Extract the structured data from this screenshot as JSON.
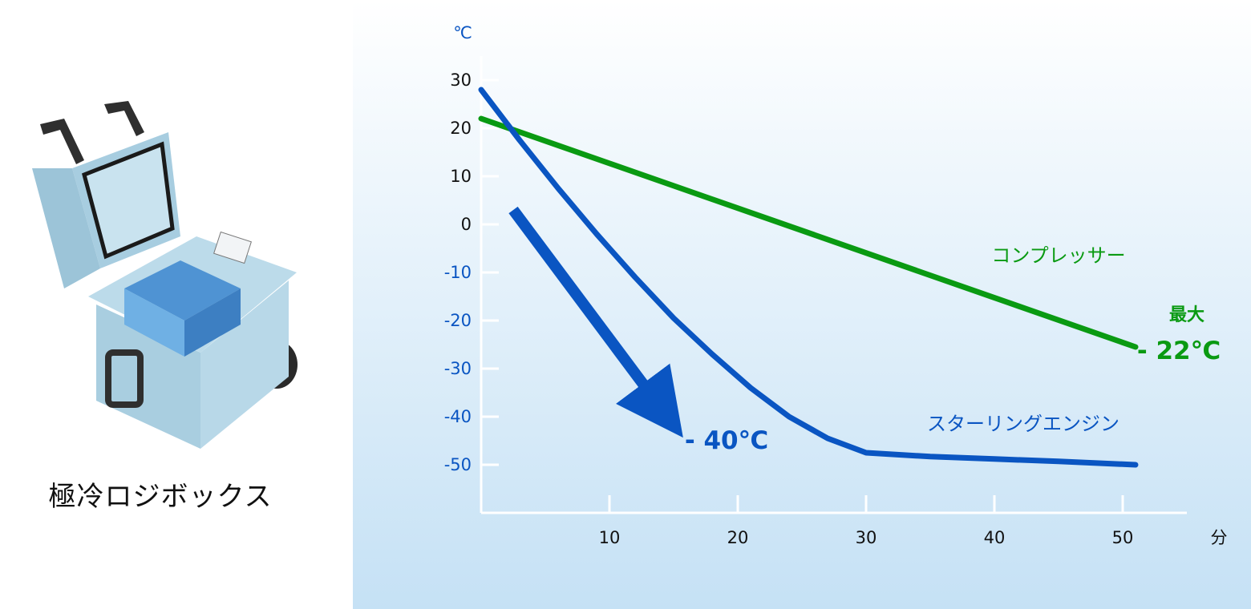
{
  "product": {
    "name": "極冷ロジボックス",
    "image": "cooler-box-icon"
  },
  "chart_data": {
    "type": "line",
    "title": "",
    "xlabel": "分",
    "ylabel": "℃",
    "xlim": [
      0,
      55
    ],
    "ylim": [
      -60,
      34
    ],
    "xticks": [
      10,
      20,
      30,
      40,
      50
    ],
    "yticks": [
      30,
      20,
      10,
      0,
      -10,
      -20,
      -30,
      -40,
      -50
    ],
    "grid": false,
    "series": [
      {
        "name": "コンプレッサー",
        "color": "#0a9a12",
        "x": [
          0,
          51
        ],
        "y": [
          22,
          -25.5
        ]
      },
      {
        "name": "スターリングエンジン",
        "color": "#0a55c2",
        "x": [
          0,
          3,
          6,
          9,
          12,
          15,
          18,
          21,
          24,
          27,
          30,
          35,
          40,
          45,
          51
        ],
        "y": [
          28,
          17.5,
          7.5,
          -2,
          -11,
          -19.5,
          -27,
          -34,
          -40,
          -44.5,
          -47.5,
          -48.3,
          -48.8,
          -49.3,
          -50
        ]
      }
    ],
    "annotations": [
      {
        "text": "最大",
        "color": "#0a9a12"
      },
      {
        "text": "- 22℃",
        "color": "#0a9a12"
      },
      {
        "text": "- 40℃",
        "color": "#0a55c2"
      }
    ]
  }
}
